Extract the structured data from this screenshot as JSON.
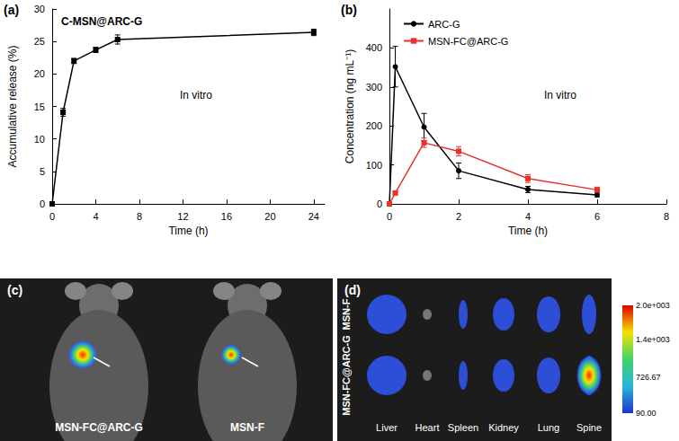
{
  "chart_data": [
    {
      "panel": "(a)",
      "type": "line",
      "x_label": "Time (h)",
      "y_label": "Accumulative release (%)",
      "annotations": [
        "C-MSN@ARC-G",
        "In vitro"
      ],
      "x": [
        0,
        1,
        2,
        4,
        6,
        24
      ],
      "series": [
        {
          "color": "#000000",
          "marker": "square",
          "values": [
            0,
            14.1,
            22.0,
            23.7,
            25.3,
            26.4
          ],
          "errors": [
            0,
            0.6,
            0.4,
            0.4,
            0.7,
            0.5
          ]
        }
      ],
      "xlim": [
        0,
        25
      ],
      "xticks": [
        0,
        4,
        8,
        12,
        16,
        20,
        24
      ],
      "ylim": [
        0,
        30
      ],
      "yticks": [
        0,
        5,
        10,
        15,
        20,
        25,
        30
      ],
      "grid": false
    },
    {
      "panel": "(b)",
      "type": "line",
      "x_label": "Time (h)",
      "y_label": "Concentration (ng mL⁻¹)",
      "annotations": [
        "In vitro"
      ],
      "x": [
        0,
        0.17,
        1,
        2,
        4,
        6
      ],
      "series": [
        {
          "name": "ARC-G",
          "color": "#000000",
          "marker": "circle",
          "values": [
            0,
            352,
            197,
            85,
            37,
            23
          ],
          "errors": [
            0,
            52,
            35,
            20,
            8,
            5
          ]
        },
        {
          "name": "MSN-FC@ARC-G",
          "color": "#e8312a",
          "marker": "square",
          "values": [
            0,
            28,
            157,
            135,
            65,
            36
          ],
          "errors": [
            0,
            3,
            12,
            12,
            10,
            7
          ]
        }
      ],
      "xlim": [
        0,
        8
      ],
      "xticks": [
        0,
        2,
        4,
        6,
        8
      ],
      "ylim": [
        0,
        500
      ],
      "yticks": [
        0,
        100,
        200,
        300,
        400
      ],
      "grid": false,
      "legend": "top-left"
    }
  ],
  "images": [
    {
      "panel": "(c)",
      "labels": [
        "MSN-FC@ARC-G",
        "MSN-F"
      ]
    },
    {
      "panel": "(d)",
      "rows": [
        "MSN-F",
        "MSN-FC@ARC-G"
      ],
      "organs": [
        "Liver",
        "Heart",
        "Spleen",
        "Kidney",
        "Lung",
        "Spine"
      ],
      "colorbar": {
        "range": [
          90,
          2000
        ],
        "ticks": [
          {
            "value": 2000,
            "label": "2.0e+003"
          },
          {
            "value": 1400,
            "label": "1.4e+003"
          },
          726.67,
          {
            "value": 90,
            "label": "90.00"
          }
        ]
      }
    }
  ]
}
